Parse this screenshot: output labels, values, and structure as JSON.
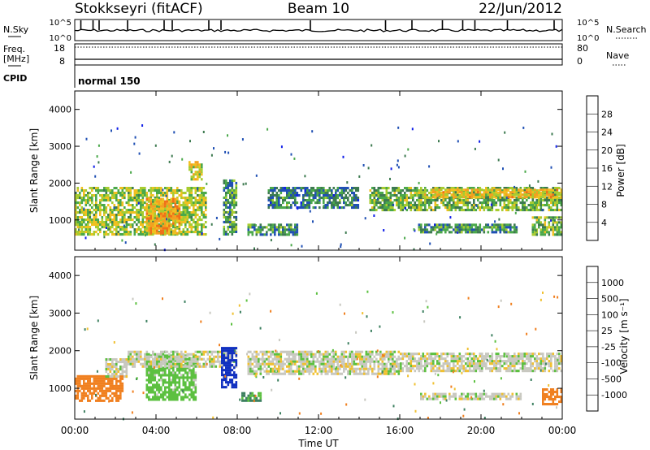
{
  "header": {
    "station": "Stokkseyri (fitACF)",
    "beam": "Beam 10",
    "date": "22/Jun/2012"
  },
  "meta_panels": {
    "nsky_label": "N.Sky",
    "nsearch_label": "N.Search",
    "nsky_ticks": [
      "10^5",
      "10^0"
    ],
    "nsearch_ticks": [
      "10^5",
      "10^0"
    ],
    "freq_label_line1": "Freq.",
    "freq_label_line2": "[MHz]",
    "freq_ticks": [
      "18",
      "8"
    ],
    "nave_label": "Nave",
    "nave_ticks": [
      "80",
      "0"
    ],
    "cpid_label": "CPID",
    "cpid_value": "normal 150"
  },
  "power_panel": {
    "ylabel": "Slant Range [km]",
    "colorbar_label": "Power [dB]",
    "colorbar_ticks": [
      "28",
      "24",
      "20",
      "16",
      "12",
      "8",
      "4"
    ],
    "colorbar_colors": [
      "#0f1ee8",
      "#2050b4",
      "#3d7a50",
      "#4aa84a",
      "#a8cc30",
      "#f0c020",
      "#f4a020",
      "#f07018",
      "#e83818",
      "#d81010"
    ]
  },
  "velocity_panel": {
    "ylabel": "Slant Range [km]",
    "colorbar_label": "Velocity [m s⁻¹]",
    "colorbar_ticks": [
      "1000",
      "500",
      "100",
      "25",
      "-25",
      "-100",
      "-500",
      "-1000"
    ],
    "colorbar_colors": [
      "#1030c0",
      "#2060a0",
      "#3d8060",
      "#5cc040",
      "#c8c8c0",
      "#c8c8c0",
      "#f0c030",
      "#f08020",
      "#e84818",
      "#e01010"
    ]
  },
  "x_axis": {
    "ticks": [
      "00:00",
      "04:00",
      "08:00",
      "12:00",
      "16:00",
      "20:00",
      "00:00"
    ],
    "label": "Time UT"
  },
  "chart_data": {
    "type": "heatmap",
    "x_range_hours": [
      0,
      24
    ],
    "y_range_km": [
      180,
      4500
    ],
    "y_ticks": [
      1000,
      2000,
      3000,
      4000
    ],
    "power_bands": [
      {
        "start_h": 0.0,
        "end_h": 6.5,
        "y_lo": 600,
        "y_hi": 1900,
        "level": 14
      },
      {
        "start_h": 3.5,
        "end_h": 5.2,
        "y_lo": 650,
        "y_hi": 1600,
        "level": 20
      },
      {
        "start_h": 5.6,
        "end_h": 6.3,
        "y_lo": 2100,
        "y_hi": 2600,
        "level": 16
      },
      {
        "start_h": 7.3,
        "end_h": 8.0,
        "y_lo": 600,
        "y_hi": 2100,
        "level": 10
      },
      {
        "start_h": 8.5,
        "end_h": 11.0,
        "y_lo": 600,
        "y_hi": 900,
        "level": 9
      },
      {
        "start_h": 9.5,
        "end_h": 14.0,
        "y_lo": 1350,
        "y_hi": 1900,
        "level": 8
      },
      {
        "start_h": 14.5,
        "end_h": 24.0,
        "y_lo": 1300,
        "y_hi": 1900,
        "level": 12
      },
      {
        "start_h": 17.0,
        "end_h": 24.0,
        "y_lo": 1650,
        "y_hi": 1850,
        "level": 18
      },
      {
        "start_h": 16.9,
        "end_h": 21.8,
        "y_lo": 700,
        "y_hi": 900,
        "level": 9
      },
      {
        "start_h": 22.5,
        "end_h": 24.0,
        "y_lo": 600,
        "y_hi": 1100,
        "level": 12
      }
    ],
    "velocity_bands": [
      {
        "start_h": 0.0,
        "end_h": 2.4,
        "y_lo": 650,
        "y_hi": 1350,
        "v": -300
      },
      {
        "start_h": 1.5,
        "end_h": 2.6,
        "y_lo": 1300,
        "y_hi": 1800,
        "v": 0
      },
      {
        "start_h": 3.5,
        "end_h": 6.0,
        "y_lo": 700,
        "y_hi": 1900,
        "v": 60
      },
      {
        "start_h": 2.6,
        "end_h": 8.0,
        "y_lo": 1600,
        "y_hi": 2000,
        "v": 0
      },
      {
        "start_h": 7.2,
        "end_h": 8.0,
        "y_lo": 1000,
        "y_hi": 2100,
        "v": 600
      },
      {
        "start_h": 8.2,
        "end_h": 9.2,
        "y_lo": 700,
        "y_hi": 900,
        "v": 120
      },
      {
        "start_h": 8.5,
        "end_h": 16.0,
        "y_lo": 1400,
        "y_hi": 2000,
        "v": 0
      },
      {
        "start_h": 16.0,
        "end_h": 24.0,
        "y_lo": 1450,
        "y_hi": 1950,
        "v": 0
      },
      {
        "start_h": 17.0,
        "end_h": 22.0,
        "y_lo": 720,
        "y_hi": 880,
        "v": 0
      },
      {
        "start_h": 23.0,
        "end_h": 24.0,
        "y_lo": 600,
        "y_hi": 1000,
        "v": -150
      }
    ]
  }
}
